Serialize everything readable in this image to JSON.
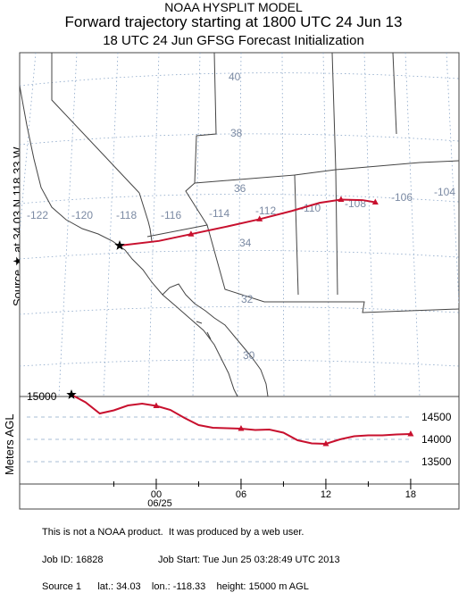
{
  "header": {
    "line1": "NOAA HYSPLIT MODEL",
    "line2": "Forward trajectory starting at 1800 UTC 24 Jun 13",
    "line3": "18 UTC 24 Jun    GFSG  Forecast Initialization"
  },
  "side_label": {
    "text": "Source ★ at   34.03 N  118.33 W"
  },
  "map": {
    "latitude_labels": [
      "40",
      "38",
      "36",
      "34",
      "32",
      "30"
    ],
    "longitude_labels": [
      "-122",
      "-120",
      "-118",
      "-116",
      "-114",
      "-112",
      "-110",
      "-108",
      "-106",
      "-104"
    ],
    "trajectory_color": "#c8102e",
    "source_marker": "star-icon",
    "source": {
      "lat": 34.03,
      "lon": -118.33
    },
    "trajectory": [
      {
        "lon": -118.33,
        "lat": 34.03
      },
      {
        "lon": -116.5,
        "lat": 34.2
      },
      {
        "lon": -115.0,
        "lat": 34.45
      },
      {
        "lon": -113.2,
        "lat": 34.75
      },
      {
        "lon": -111.8,
        "lat": 35.0
      },
      {
        "lon": -110.3,
        "lat": 35.3
      },
      {
        "lon": -109.0,
        "lat": 35.6
      },
      {
        "lon": -108.0,
        "lat": 35.72
      },
      {
        "lon": -107.0,
        "lat": 35.7
      },
      {
        "lon": -106.4,
        "lat": 35.62
      }
    ],
    "six_hour_marks": [
      {
        "lon": -115.0,
        "lat": 34.45
      },
      {
        "lon": -111.8,
        "lat": 35.0
      },
      {
        "lon": -108.0,
        "lat": 35.72
      },
      {
        "lon": -106.4,
        "lat": 35.62
      }
    ]
  },
  "height_panel": {
    "y_label": "Meters AGL",
    "start_label": "15000",
    "y_ticks": [
      "14500",
      "14000",
      "13500"
    ],
    "y_values": [
      14500,
      14000,
      13500
    ],
    "x_ticks": [
      {
        "hour": 6,
        "label": "00"
      },
      {
        "hour": 12,
        "label": "06"
      },
      {
        "hour": 18,
        "label": "12"
      },
      {
        "hour": 24,
        "label": "18"
      }
    ],
    "date_label": "06/25",
    "series": [
      {
        "hour": 0,
        "m": 15000
      },
      {
        "hour": 1,
        "m": 14830
      },
      {
        "hour": 2,
        "m": 14580
      },
      {
        "hour": 3,
        "m": 14650
      },
      {
        "hour": 4,
        "m": 14760
      },
      {
        "hour": 5,
        "m": 14800
      },
      {
        "hour": 6,
        "m": 14750
      },
      {
        "hour": 7,
        "m": 14660
      },
      {
        "hour": 8,
        "m": 14480
      },
      {
        "hour": 9,
        "m": 14320
      },
      {
        "hour": 10,
        "m": 14260
      },
      {
        "hour": 11,
        "m": 14250
      },
      {
        "hour": 12,
        "m": 14240
      },
      {
        "hour": 13,
        "m": 14210
      },
      {
        "hour": 14,
        "m": 14220
      },
      {
        "hour": 15,
        "m": 14150
      },
      {
        "hour": 16,
        "m": 13980
      },
      {
        "hour": 17,
        "m": 13910
      },
      {
        "hour": 18,
        "m": 13900
      },
      {
        "hour": 19,
        "m": 14000
      },
      {
        "hour": 20,
        "m": 14070
      },
      {
        "hour": 21,
        "m": 14090
      },
      {
        "hour": 22,
        "m": 14090
      },
      {
        "hour": 23,
        "m": 14110
      },
      {
        "hour": 24,
        "m": 14120
      }
    ],
    "marks": [
      {
        "hour": 6,
        "m": 14750
      },
      {
        "hour": 12,
        "m": 14240
      },
      {
        "hour": 18,
        "m": 13900
      },
      {
        "hour": 24,
        "m": 14120
      }
    ]
  },
  "footer": {
    "line1": "This is not a NOAA product.  It was produced by a web user.",
    "job_id": "Job ID: 16828",
    "job_start": "Job Start: Tue Jun 25 03:28:49 UTC 2013",
    "source_line": "Source 1      lat.: 34.03    lon.: -118.33    height: 15000 m AGL"
  }
}
